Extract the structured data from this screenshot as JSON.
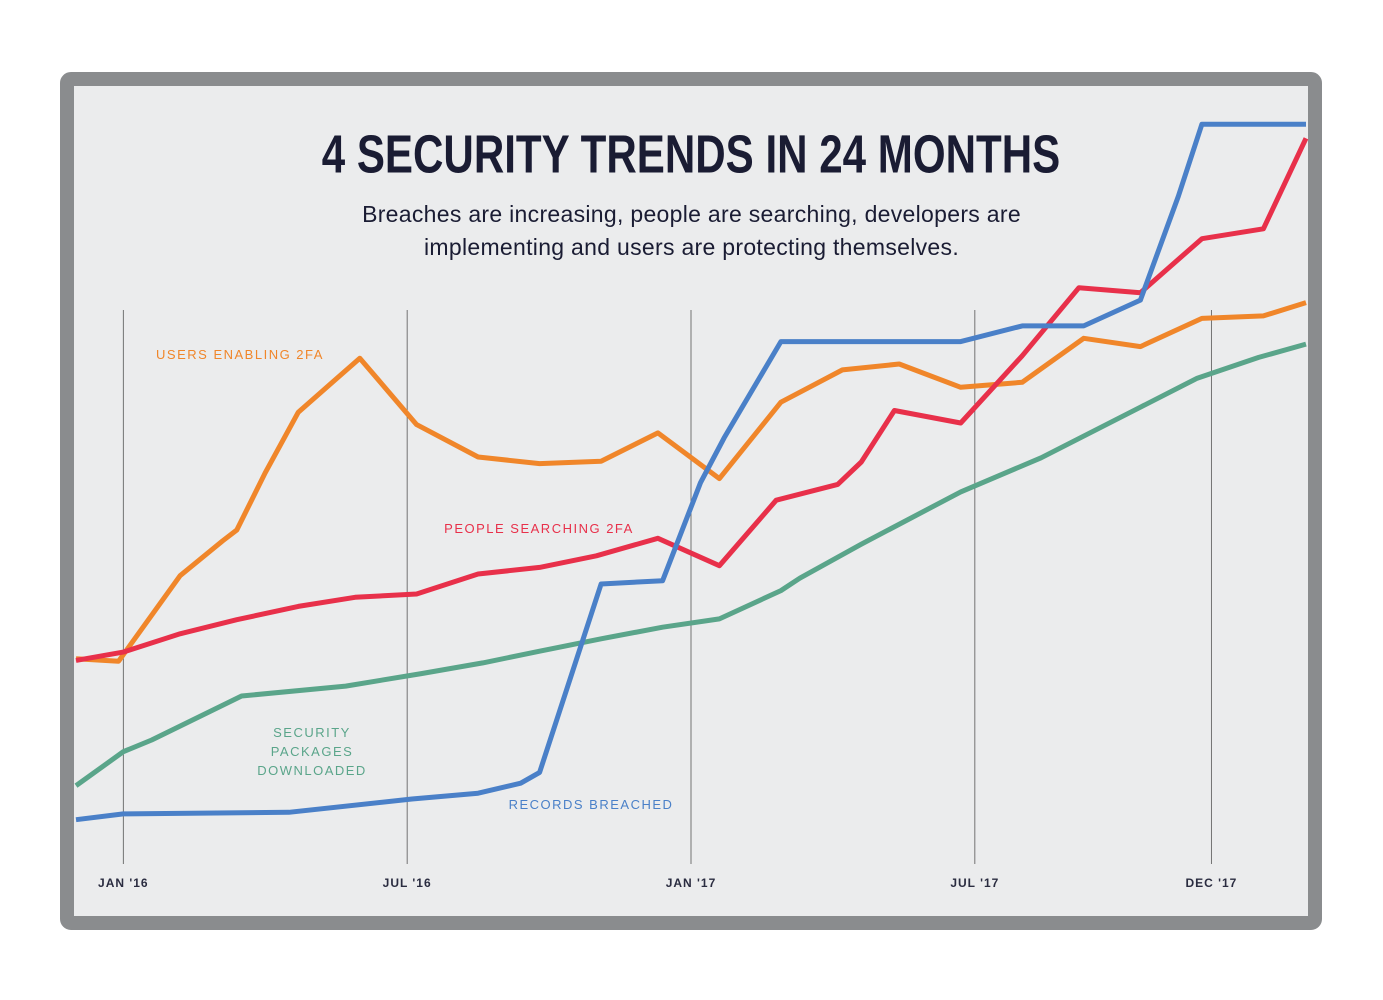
{
  "chart_data": {
    "type": "line",
    "title": "4 SECURITY TRENDS IN 24 MONTHS",
    "subtitle": "Breaches are increasing, people are searching, developers are implementing and users are protecting themselves.",
    "xlim": [
      -1,
      25
    ],
    "ylim": [
      0,
      100
    ],
    "xticks": [
      {
        "value": 0,
        "label": "JAN '16"
      },
      {
        "value": 6,
        "label": "JUL '16"
      },
      {
        "value": 12,
        "label": "JAN '17"
      },
      {
        "value": 18,
        "label": "JUL '17"
      },
      {
        "value": 23,
        "label": "DEC '17"
      }
    ],
    "grid": true,
    "series": [
      {
        "name": "USERS ENABLING 2FA",
        "color": "#f0862a",
        "x": [
          -1.0,
          -0.1,
          1.2,
          2.1,
          2.4,
          3.0,
          3.7,
          5.0,
          6.2,
          7.5,
          8.8,
          10.1,
          11.3,
          12.6,
          13.9,
          15.2,
          16.4,
          17.7,
          19.0,
          20.3,
          21.5,
          22.8,
          24.1,
          25.0
        ],
        "values": [
          31.0,
          30.7,
          41.0,
          45.2,
          46.5,
          53.4,
          60.7,
          67.2,
          59.2,
          55.3,
          54.5,
          54.8,
          58.2,
          52.7,
          61.9,
          65.8,
          66.5,
          63.7,
          64.3,
          69.6,
          68.6,
          72.0,
          72.3,
          73.9
        ]
      },
      {
        "name": "PEOPLE SEARCHING 2FA",
        "color": "#e8304a",
        "x": [
          -1.0,
          0.0,
          1.2,
          2.4,
          3.7,
          4.9,
          6.2,
          7.5,
          8.8,
          10.0,
          11.3,
          12.6,
          13.8,
          15.1,
          15.6,
          16.3,
          17.7,
          19.0,
          20.2,
          21.5,
          22.8,
          24.1,
          25.0
        ],
        "values": [
          30.8,
          31.8,
          34.0,
          35.7,
          37.3,
          38.4,
          38.8,
          41.2,
          42.0,
          43.4,
          45.5,
          42.2,
          50.1,
          52.0,
          54.7,
          60.9,
          59.4,
          67.5,
          75.7,
          75.1,
          81.6,
          82.8,
          93.7
        ]
      },
      {
        "name": "SECURITY PACKAGES DOWNLOADED",
        "color": "#5aa58a",
        "x": [
          -1.0,
          0.0,
          0.6,
          2.5,
          4.7,
          6.3,
          7.6,
          8.8,
          10.1,
          11.4,
          12.6,
          13.9,
          14.3,
          15.6,
          17.7,
          19.4,
          21.5,
          22.7,
          24.0,
          25.0
        ],
        "values": [
          15.7,
          19.8,
          21.2,
          26.5,
          27.7,
          29.2,
          30.5,
          31.9,
          33.4,
          34.8,
          35.8,
          39.2,
          40.7,
          44.8,
          51.1,
          55.2,
          61.3,
          64.8,
          67.3,
          68.9
        ]
      },
      {
        "name": "RECORDS BREACHED",
        "color": "#4a80c8",
        "x": [
          -1.0,
          0.0,
          3.5,
          6.1,
          7.5,
          8.4,
          8.8,
          10.1,
          11.4,
          12.2,
          12.7,
          13.9,
          17.7,
          19.0,
          20.3,
          21.5,
          22.3,
          22.8,
          25.0
        ],
        "values": [
          11.6,
          12.3,
          12.5,
          14.1,
          14.8,
          16.0,
          17.3,
          40.0,
          40.4,
          52.2,
          57.6,
          69.2,
          69.2,
          71.1,
          71.1,
          74.2,
          86.7,
          95.4,
          95.4
        ]
      }
    ]
  }
}
